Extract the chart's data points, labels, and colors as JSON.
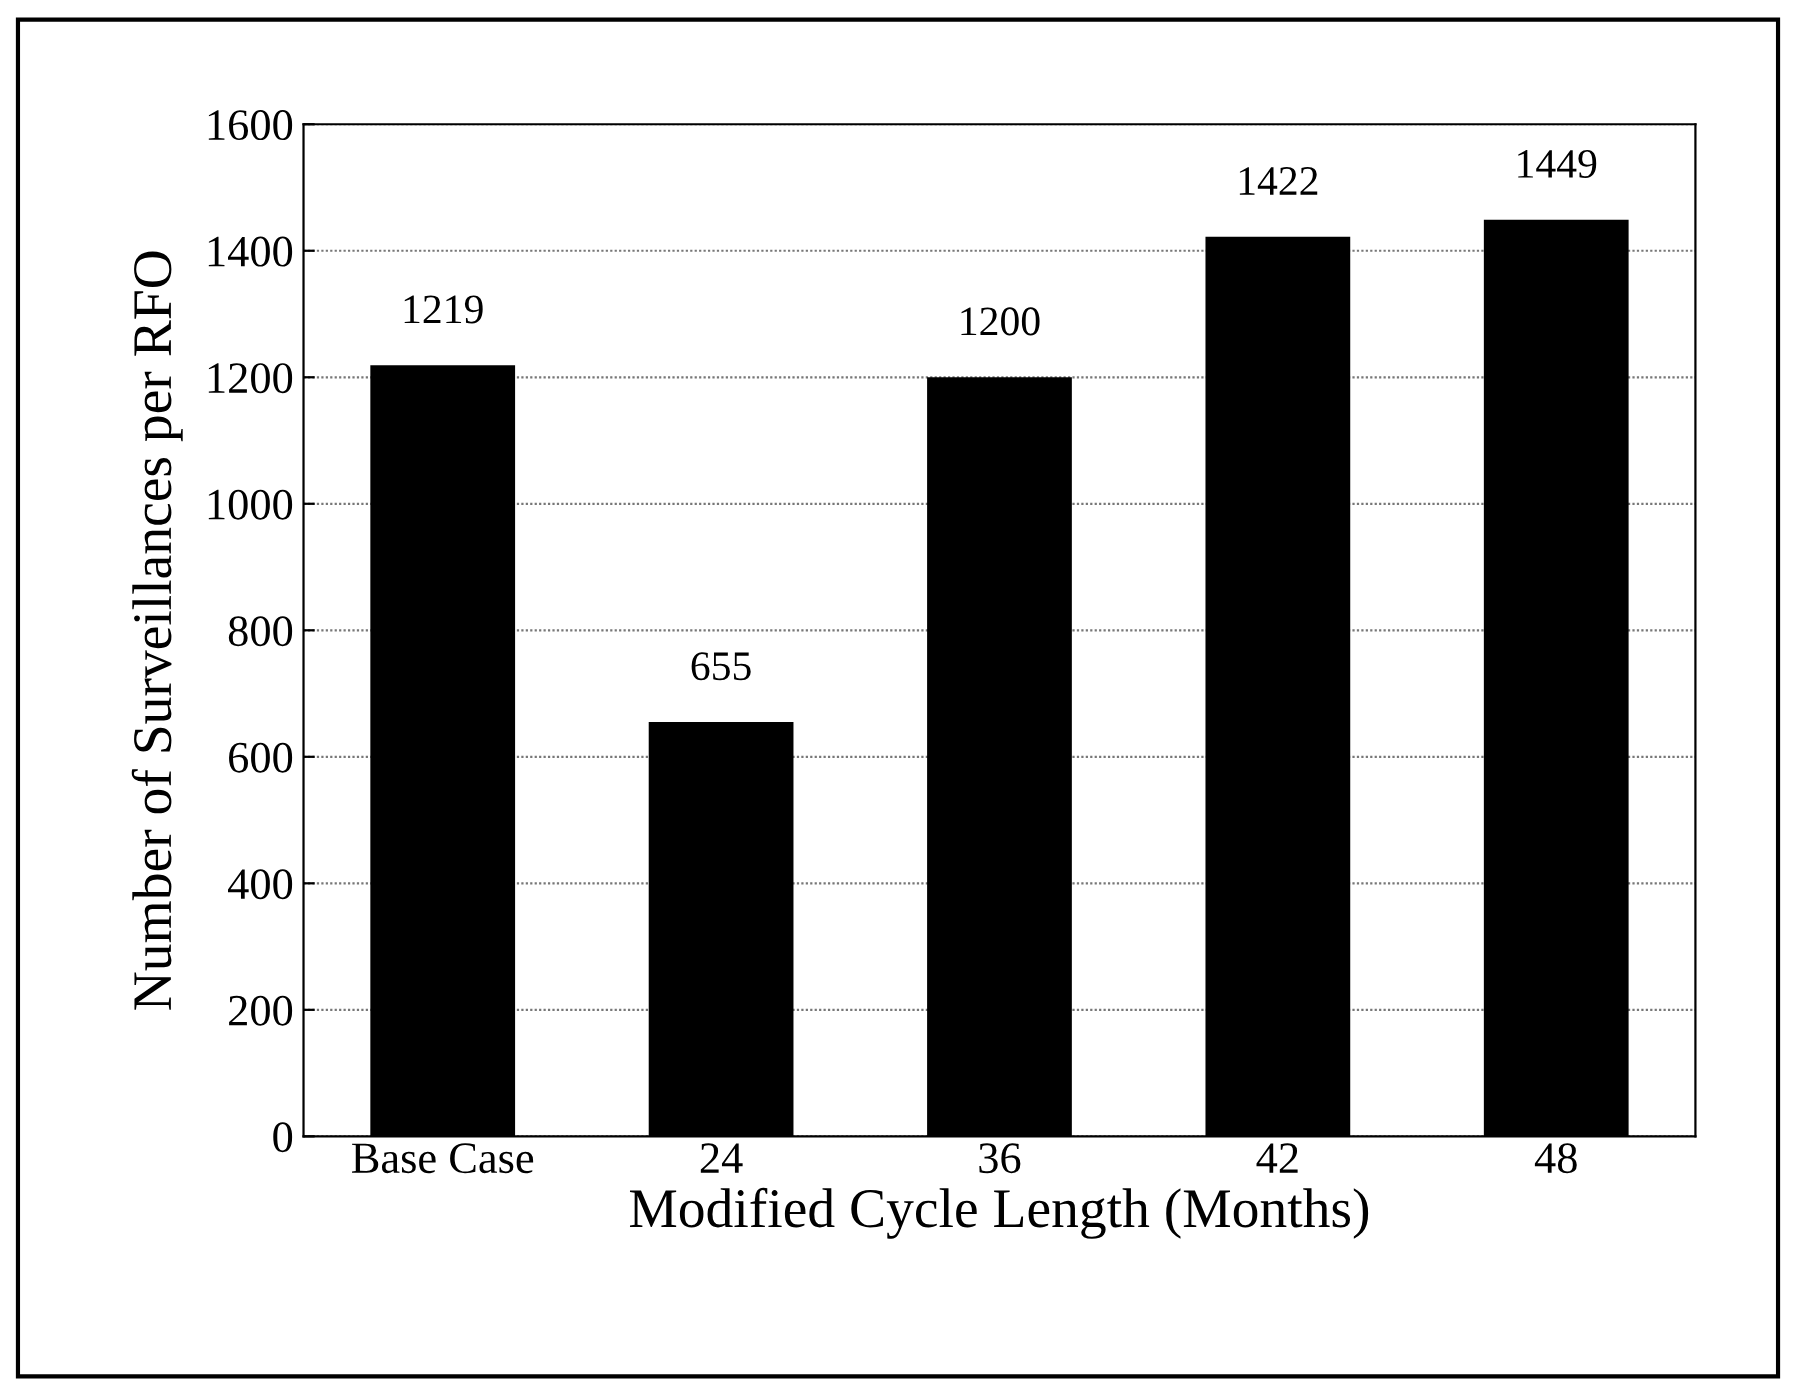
{
  "chart_data": {
    "type": "bar",
    "xlabel": "Modified Cycle Length (Months)",
    "ylabel": "Number of Surveillances per RFO",
    "categories": [
      "Base Case",
      "24",
      "36",
      "42",
      "48"
    ],
    "values": [
      1219,
      655,
      1200,
      1422,
      1449
    ],
    "color": "#000000",
    "ylim": [
      0,
      1600
    ],
    "yticks": [
      0,
      200,
      400,
      600,
      800,
      1000,
      1200,
      1400,
      1600
    ],
    "grid": "y",
    "data_labels": true
  }
}
